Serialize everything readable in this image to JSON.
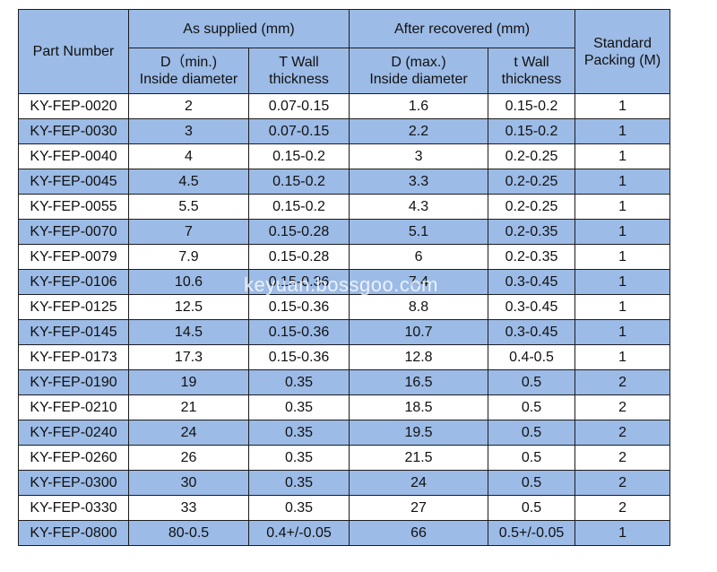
{
  "header": {
    "part_number": "Part Number",
    "as_supplied": "As supplied (mm)",
    "after_recovered": "After recovered (mm)",
    "standard_packing": "Standard Packing (M)",
    "sub": {
      "d_min_1": "D（min.)",
      "d_min_2": "Inside diameter",
      "t_wall_1": "T  Wall",
      "t_wall_2": "thickness",
      "d_max_1": "D (max.)",
      "d_max_2": "Inside diameter",
      "t_wall_rec_1": "t Wall",
      "t_wall_rec_2": "thickness"
    }
  },
  "rows": [
    {
      "part": "KY-FEP-0020",
      "d_min": "2",
      "t_supplied": "0.07-0.15",
      "d_max": "1.6",
      "t_recovered": "0.15-0.2",
      "packing": "1"
    },
    {
      "part": "KY-FEP-0030",
      "d_min": "3",
      "t_supplied": "0.07-0.15",
      "d_max": "2.2",
      "t_recovered": "0.15-0.2",
      "packing": "1"
    },
    {
      "part": "KY-FEP-0040",
      "d_min": "4",
      "t_supplied": "0.15-0.2",
      "d_max": "3",
      "t_recovered": "0.2-0.25",
      "packing": "1"
    },
    {
      "part": "KY-FEP-0045",
      "d_min": "4.5",
      "t_supplied": "0.15-0.2",
      "d_max": "3.3",
      "t_recovered": "0.2-0.25",
      "packing": "1"
    },
    {
      "part": "KY-FEP-0055",
      "d_min": "5.5",
      "t_supplied": "0.15-0.2",
      "d_max": "4.3",
      "t_recovered": "0.2-0.25",
      "packing": "1"
    },
    {
      "part": "KY-FEP-0070",
      "d_min": "7",
      "t_supplied": "0.15-0.28",
      "d_max": "5.1",
      "t_recovered": "0.2-0.35",
      "packing": "1"
    },
    {
      "part": "KY-FEP-0079",
      "d_min": "7.9",
      "t_supplied": "0.15-0.28",
      "d_max": "6",
      "t_recovered": "0.2-0.35",
      "packing": "1"
    },
    {
      "part": "KY-FEP-0106",
      "d_min": "10.6",
      "t_supplied": "0.15-0.36",
      "d_max": "7.4",
      "t_recovered": "0.3-0.45",
      "packing": "1"
    },
    {
      "part": "KY-FEP-0125",
      "d_min": "12.5",
      "t_supplied": "0.15-0.36",
      "d_max": "8.8",
      "t_recovered": "0.3-0.45",
      "packing": "1"
    },
    {
      "part": "KY-FEP-0145",
      "d_min": "14.5",
      "t_supplied": "0.15-0.36",
      "d_max": "10.7",
      "t_recovered": "0.3-0.45",
      "packing": "1"
    },
    {
      "part": "KY-FEP-0173",
      "d_min": "17.3",
      "t_supplied": "0.15-0.36",
      "d_max": "12.8",
      "t_recovered": "0.4-0.5",
      "packing": "1"
    },
    {
      "part": "KY-FEP-0190",
      "d_min": "19",
      "t_supplied": "0.35",
      "d_max": "16.5",
      "t_recovered": "0.5",
      "packing": "2"
    },
    {
      "part": "KY-FEP-0210",
      "d_min": "21",
      "t_supplied": "0.35",
      "d_max": "18.5",
      "t_recovered": "0.5",
      "packing": "2"
    },
    {
      "part": "KY-FEP-0240",
      "d_min": "24",
      "t_supplied": "0.35",
      "d_max": "19.5",
      "t_recovered": "0.5",
      "packing": "2"
    },
    {
      "part": "KY-FEP-0260",
      "d_min": "26",
      "t_supplied": "0.35",
      "d_max": "21.5",
      "t_recovered": "0.5",
      "packing": "2"
    },
    {
      "part": "KY-FEP-0300",
      "d_min": "30",
      "t_supplied": "0.35",
      "d_max": "24",
      "t_recovered": "0.5",
      "packing": "2"
    },
    {
      "part": "KY-FEP-0330",
      "d_min": "33",
      "t_supplied": "0.35",
      "d_max": "27",
      "t_recovered": "0.5",
      "packing": "2"
    },
    {
      "part": "KY-FEP-0800",
      "d_min": "80-0.5",
      "t_supplied": "0.4+/-0.05",
      "d_max": "66",
      "t_recovered": "0.5+/-0.05",
      "packing": "1"
    }
  ],
  "watermark": "keyuan.bossgoo.com",
  "colors": {
    "header_bg": "#9cbbe6",
    "stripe_bg": "#9cbbe6",
    "border": "#1c1c1c"
  }
}
